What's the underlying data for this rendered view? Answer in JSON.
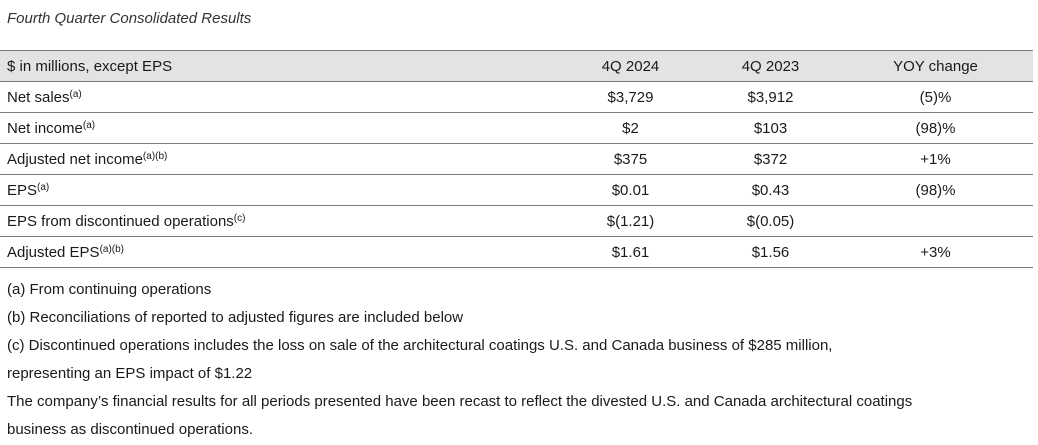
{
  "title": "Fourth Quarter Consolidated Results",
  "table": {
    "headers": [
      "$ in millions, except EPS",
      "4Q 2024",
      "4Q 2023",
      "YOY change"
    ],
    "rows": [
      {
        "label": "Net sales",
        "sup": "(a)",
        "q4_2024": "$3,729",
        "q4_2023": "$3,912",
        "yoy": "(5)%"
      },
      {
        "label": "Net income",
        "sup": "(a)",
        "q4_2024": "$2",
        "q4_2023": "$103",
        "yoy": "(98)%"
      },
      {
        "label": "Adjusted net income",
        "sup": "(a)(b)",
        "q4_2024": "$375",
        "q4_2023": "$372",
        "yoy": "+1%"
      },
      {
        "label": "EPS",
        "sup": "(a)",
        "q4_2024": "$0.01",
        "q4_2023": "$0.43",
        "yoy": "(98)%"
      },
      {
        "label": "EPS from discontinued operations",
        "sup": "(c)",
        "q4_2024": "$(1.21)",
        "q4_2023": "$(0.05)",
        "yoy": ""
      },
      {
        "label": "Adjusted EPS",
        "sup": "(a)(b)",
        "q4_2024": "$1.61",
        "q4_2023": "$1.56",
        "yoy": "+3%"
      }
    ]
  },
  "notes": [
    "(a) From continuing operations",
    "(b) Reconciliations of reported to adjusted figures are included below",
    "(c) Discontinued operations includes the loss on sale of the architectural coatings U.S. and Canada business of $285 million,",
    "representing an EPS impact of $1.22",
    "The company’s financial results for all periods presented have been recast to reflect the divested U.S. and Canada architectural coatings",
    "business as discontinued operations."
  ]
}
